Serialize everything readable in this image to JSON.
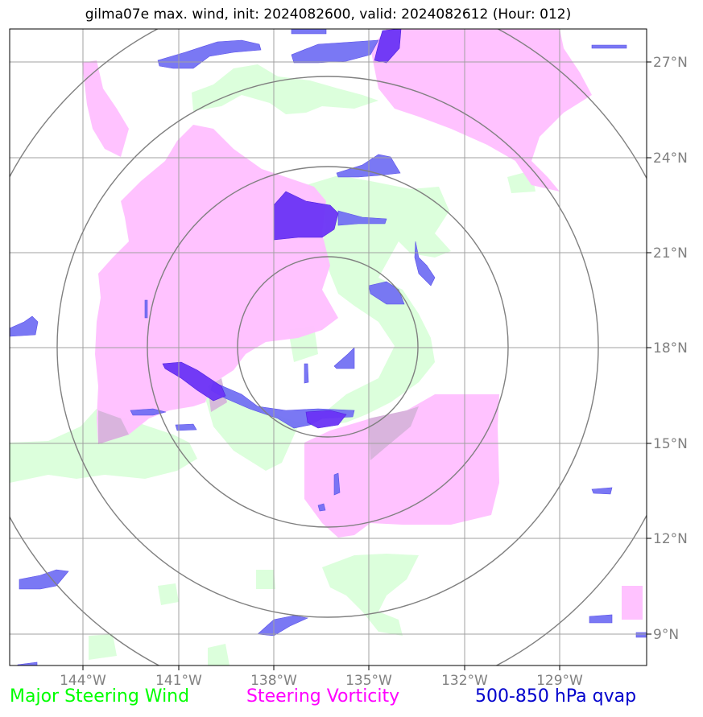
{
  "title": "gilma07e max. wind, init: 2024082600, valid: 2024082612 (Hour: 012)",
  "colors": {
    "wind": "#00ff00",
    "wind_fill": "#dcffdc",
    "vorticity": "#ff00ff",
    "vorticity_fill": "#ffbfff",
    "qvap": "#0000cc",
    "qvap_fill": "#6f6cf3",
    "qvap_dark": "#6a33f5",
    "grid": "#a0a0a0",
    "rings": "#808080",
    "tick_text": "#808080"
  },
  "axes": {
    "lon_labels": [
      "144°W",
      "141°W",
      "138°W",
      "135°W",
      "132°W",
      "129°W"
    ],
    "lat_labels": [
      "27°N",
      "24°N",
      "21°N",
      "18°N",
      "15°N",
      "12°N",
      "9°N"
    ]
  },
  "center": {
    "lon": -135.8,
    "lat": 18.0
  },
  "ring_radii_deg": [
    2.8,
    5.6,
    8.4,
    11.2
  ],
  "legend": {
    "wind": "Major Steering Wind",
    "vorticity": "Steering Vorticity",
    "qvap": "500-850 hPa qvap"
  }
}
